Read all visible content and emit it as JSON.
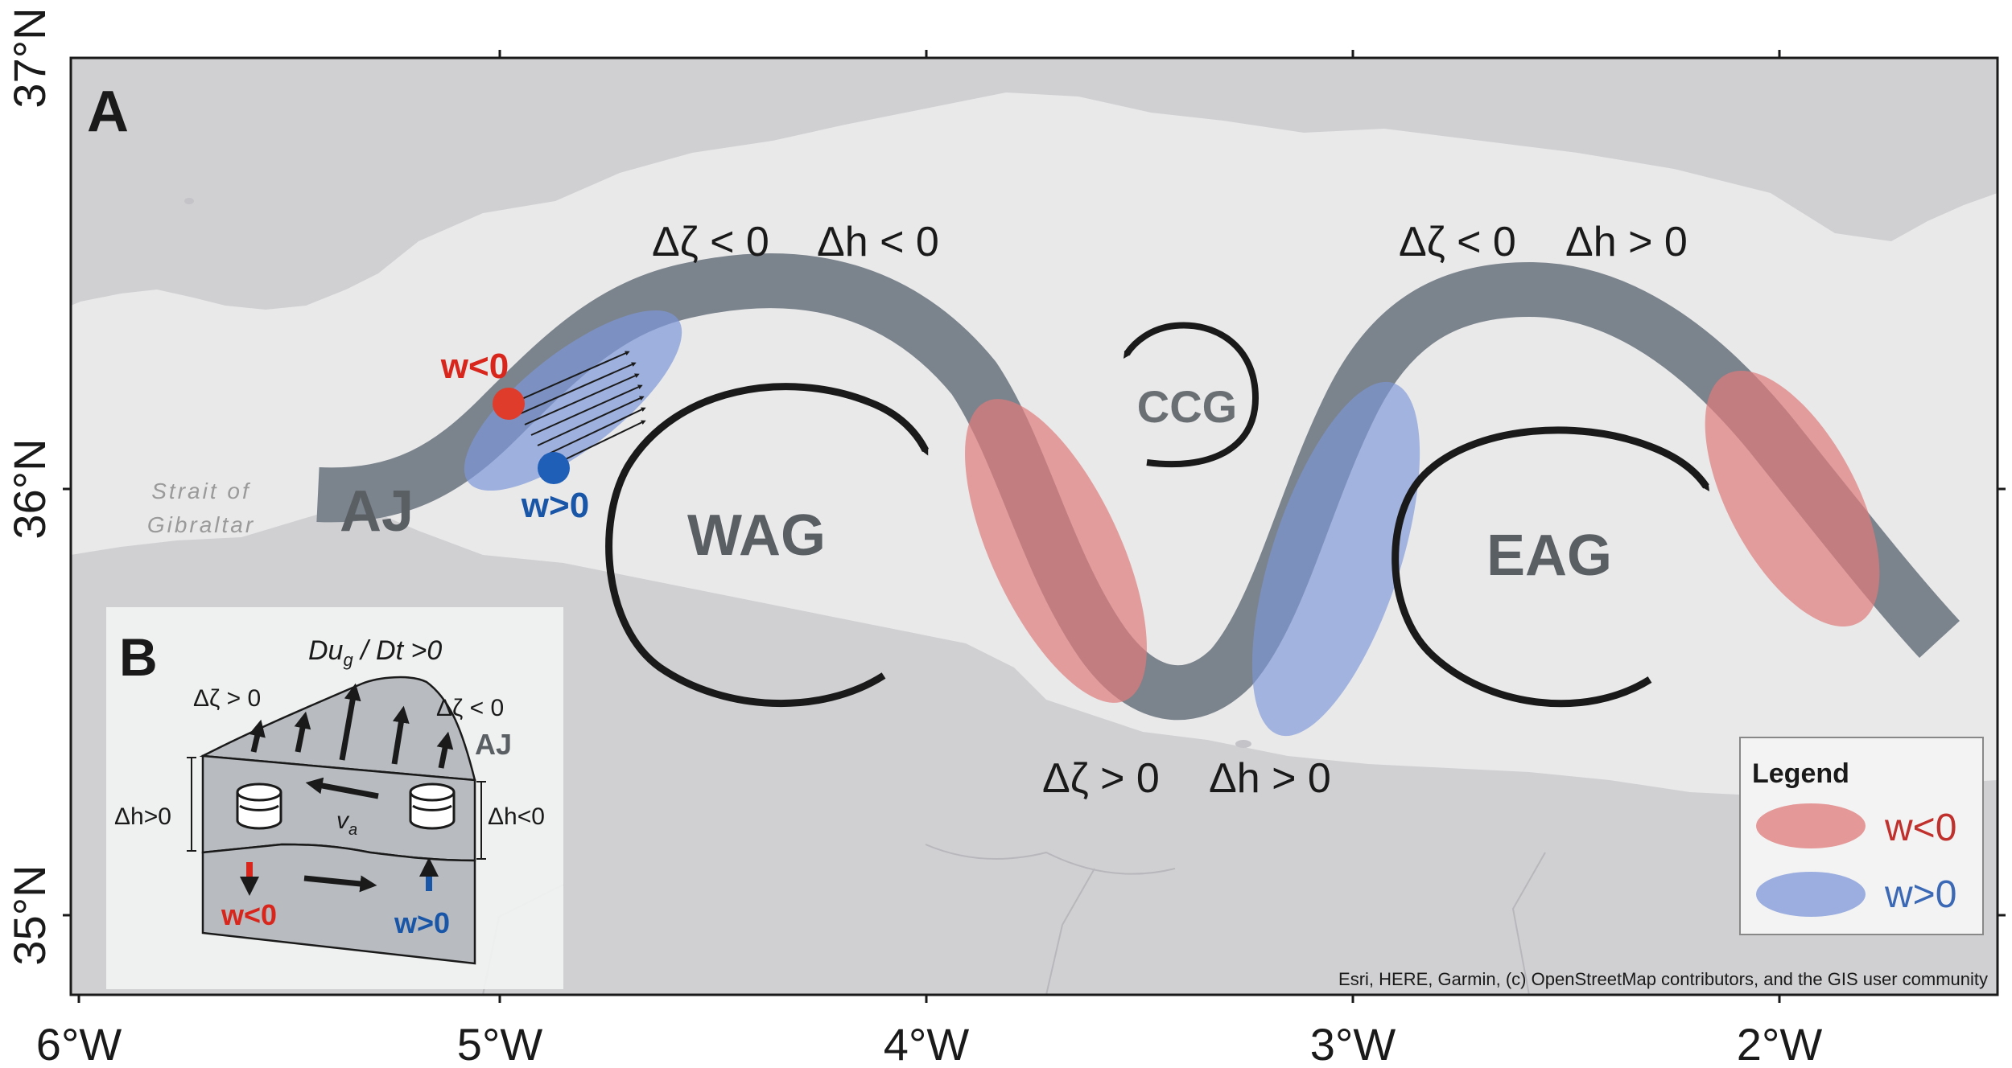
{
  "panel_a": {
    "label": "A",
    "axes": {
      "longitude_labels": [
        "6°W",
        "5°W",
        "4°W",
        "3°W",
        "2°W"
      ],
      "latitude_labels": [
        "37°N",
        "36°N",
        "35°N"
      ]
    },
    "place_label_line1": "Strait of",
    "place_label_line2": "Gibraltar",
    "current_label": "AJ",
    "gyres": {
      "western": "WAG",
      "eastern": "EAG",
      "cyclonic": "CCG"
    },
    "annotations": {
      "top_left": [
        "Δζ < 0",
        "Δh < 0"
      ],
      "top_right": [
        "Δζ < 0",
        "Δh > 0"
      ],
      "bottom": [
        "Δζ > 0",
        "Δh > 0"
      ]
    },
    "point_labels": {
      "red": "w<0",
      "blue": "w>0"
    },
    "attribution": "Esri, HERE, Garmin, (c) OpenStreetMap contributors, and the GIS user community"
  },
  "panel_b": {
    "label": "B",
    "title": "Du",
    "title_sub": "g",
    "title_rest": " / Dt >0",
    "vort_left": "Δζ > 0",
    "vort_right": "Δζ < 0",
    "current_label": "AJ",
    "dh_left": "Δh>0",
    "dh_right": "Δh<0",
    "va": "v",
    "va_sub": "a",
    "w_down": "w<0",
    "w_up": "w>0"
  },
  "legend": {
    "title": "Legend",
    "items": [
      {
        "label": "w<0",
        "color": "#e07a7a",
        "text_color": "#c0302c"
      },
      {
        "label": "w>0",
        "color": "#7d97d8",
        "text_color": "#3b69b6"
      }
    ]
  },
  "colors": {
    "land": "#d0d0d3",
    "sea": "#e8e8e8",
    "jet": "#7b838c",
    "red_point": "#e03c2c",
    "blue_point": "#1f5fb8",
    "red_text": "#d8261c",
    "blue_text": "#1a56a8",
    "arrow": "#1a1a1a"
  }
}
